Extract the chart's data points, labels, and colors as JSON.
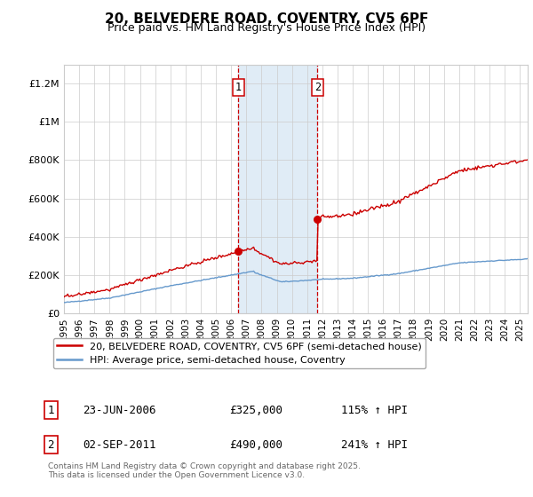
{
  "title": "20, BELVEDERE ROAD, COVENTRY, CV5 6PF",
  "subtitle": "Price paid vs. HM Land Registry's House Price Index (HPI)",
  "ylim": [
    0,
    1300000
  ],
  "xlim_start": 1995.0,
  "xlim_end": 2025.5,
  "purchase1_date": 2006.48,
  "purchase1_price": 325000,
  "purchase2_date": 2011.67,
  "purchase2_price": 490000,
  "purchase1_label": "1",
  "purchase2_label": "2",
  "purchase1_display": "23-JUN-2006",
  "purchase1_amount": "£325,000",
  "purchase1_hpi": "115% ↑ HPI",
  "purchase2_display": "02-SEP-2011",
  "purchase2_amount": "£490,000",
  "purchase2_hpi": "241% ↑ HPI",
  "red_color": "#cc0000",
  "blue_color": "#6699cc",
  "shade_color": "#cce0f0",
  "grid_color": "#cccccc",
  "bg_color": "#ffffff",
  "legend_line1": "20, BELVEDERE ROAD, COVENTRY, CV5 6PF (semi-detached house)",
  "legend_line2": "HPI: Average price, semi-detached house, Coventry",
  "footer": "Contains HM Land Registry data © Crown copyright and database right 2025.\nThis data is licensed under the Open Government Licence v3.0.",
  "yticks": [
    0,
    200000,
    400000,
    600000,
    800000,
    1000000,
    1200000
  ],
  "ytick_labels": [
    "£0",
    "£200K",
    "£400K",
    "£600K",
    "£800K",
    "£1M",
    "£1.2M"
  ],
  "xticks": [
    1995,
    1996,
    1997,
    1998,
    1999,
    2000,
    2001,
    2002,
    2003,
    2004,
    2005,
    2006,
    2007,
    2008,
    2009,
    2010,
    2011,
    2012,
    2013,
    2014,
    2015,
    2016,
    2017,
    2018,
    2019,
    2020,
    2021,
    2022,
    2023,
    2024,
    2025
  ]
}
